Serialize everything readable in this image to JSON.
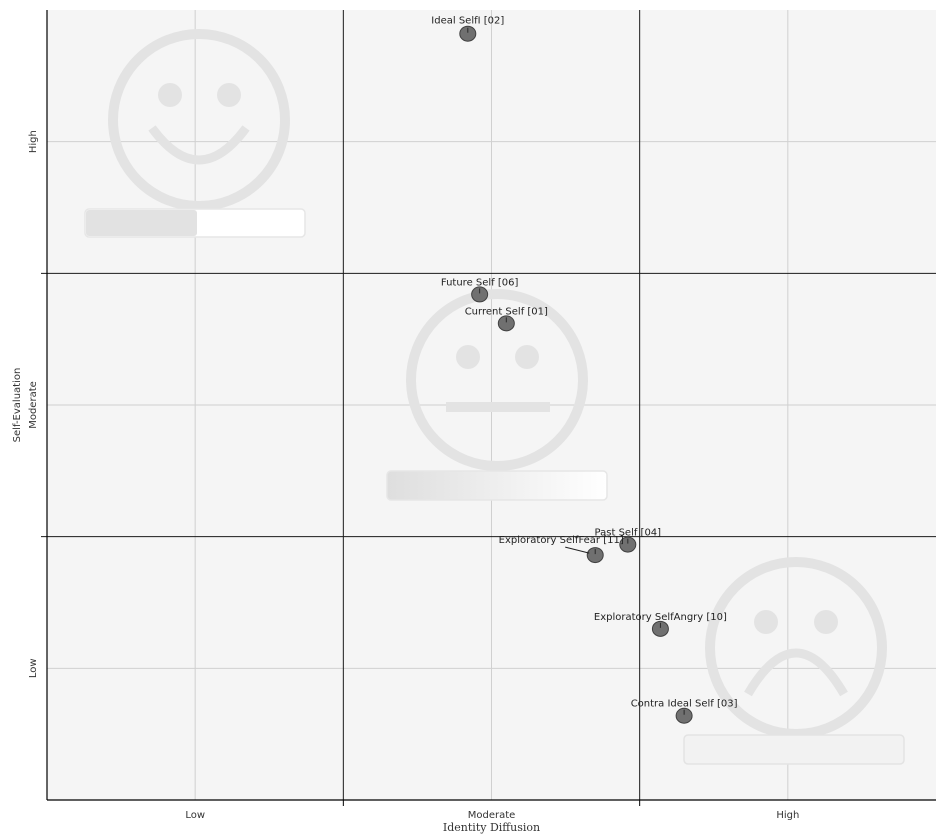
{
  "chart_data": {
    "type": "scatter",
    "xlabel": "Identity Diffusion",
    "ylabel": "Self-Evaluation",
    "xlim": [
      0,
      3
    ],
    "ylim": [
      0,
      3
    ],
    "x_tick_labels": [
      "Low",
      "Moderate",
      "High"
    ],
    "y_tick_labels": [
      "Low",
      "Moderate",
      "High"
    ],
    "grid": true,
    "colors": {
      "plot_background": "#f5f5f5",
      "point_fill": "#707070",
      "point_stroke": "#404040",
      "region_divider": "#1a1a1a",
      "gridline": "#d0d0d0",
      "face_watermark": "#e3e3e3"
    },
    "background_icons": [
      "happy-face-icon",
      "neutral-face-icon",
      "sad-face-icon"
    ],
    "points": [
      {
        "label": "Ideal SelfI [02]",
        "x": 1.42,
        "y": 2.91
      },
      {
        "label": "Future Self [06]",
        "x": 1.46,
        "y": 1.92
      },
      {
        "label": "Current Self [01]",
        "x": 1.55,
        "y": 1.81
      },
      {
        "label": "Past Self [04]",
        "x": 1.96,
        "y": 0.97
      },
      {
        "label": "Exploratory SelfFear [11]",
        "x": 1.85,
        "y": 0.93
      },
      {
        "label": "Exploratory SelfAngry [10]",
        "x": 2.07,
        "y": 0.65
      },
      {
        "label": "Contra Ideal Self [03]",
        "x": 2.15,
        "y": 0.32
      }
    ]
  }
}
